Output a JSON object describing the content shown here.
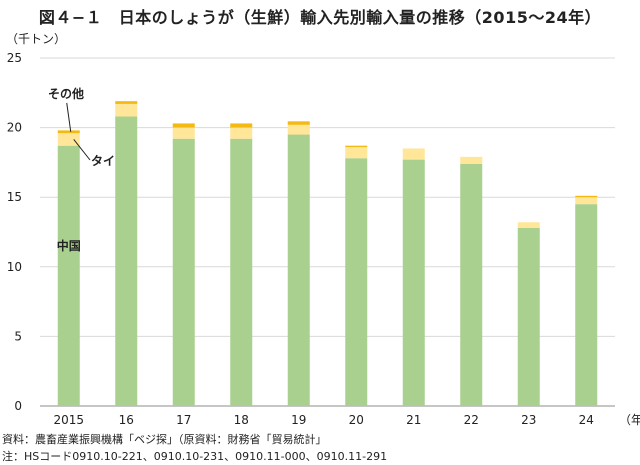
{
  "title": "図４−１　日本のしょうが（生鮮）輸入先別輸入量の推移（2015〜24年）",
  "chart_data": {
    "type": "bar",
    "stacked": true,
    "unit_label": "（千トン）",
    "x_unit": "（年）",
    "categories": [
      "2015",
      "16",
      "17",
      "18",
      "19",
      "20",
      "21",
      "22",
      "23",
      "24"
    ],
    "ylim": [
      0,
      25
    ],
    "yticks": [
      0,
      5,
      10,
      15,
      20,
      25
    ],
    "grid": true,
    "series": [
      {
        "name": "中国",
        "color": "#a9d08e",
        "values": [
          18.7,
          20.8,
          19.2,
          19.2,
          19.5,
          17.8,
          17.7,
          17.4,
          12.8,
          14.5
        ]
      },
      {
        "name": "タイ",
        "color": "#ffe699",
        "values": [
          0.9,
          0.9,
          0.8,
          0.8,
          0.7,
          0.8,
          0.8,
          0.5,
          0.4,
          0.5
        ]
      },
      {
        "name": "その他",
        "color": "#f4b913",
        "values": [
          0.2,
          0.2,
          0.3,
          0.3,
          0.25,
          0.1,
          0.0,
          0.0,
          0.0,
          0.1
        ]
      }
    ],
    "annotations": [
      "その他",
      "タイ",
      "中国"
    ]
  },
  "source_lines": [
    "資料：農畜産業振興機構「ベジ探」（原資料：財務省「貿易統計」",
    "注：HSコード0910.10-221、0910.10-231、0910.11-000、0910.11-291"
  ]
}
